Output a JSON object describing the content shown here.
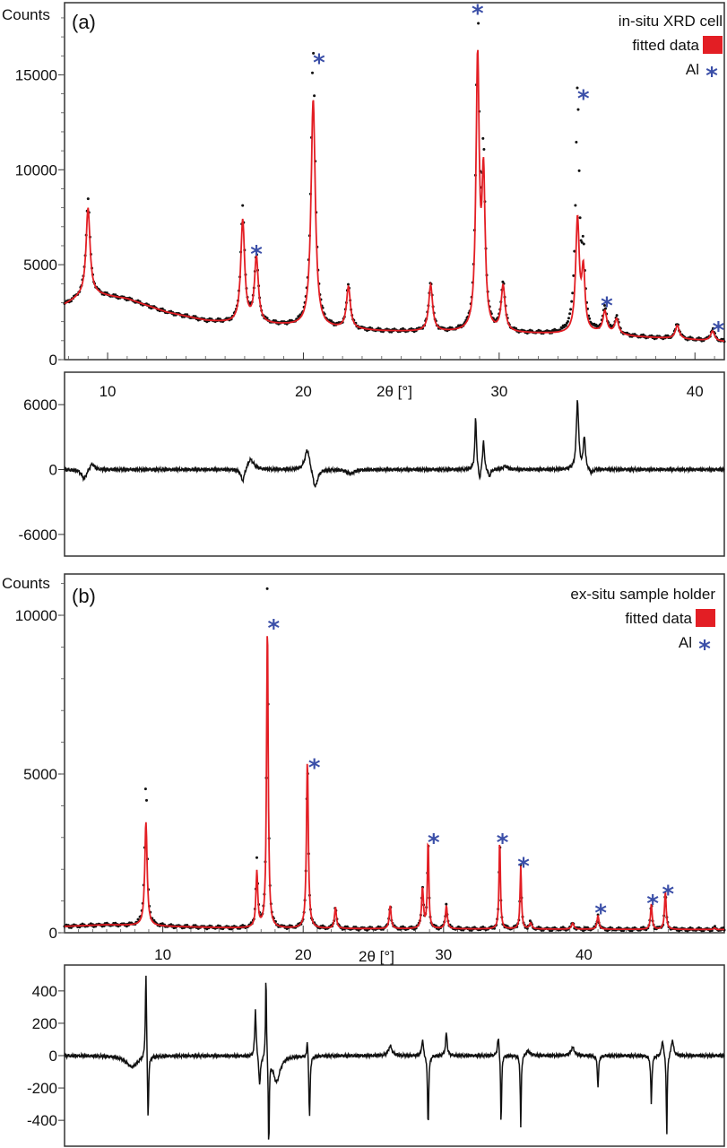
{
  "colors": {
    "fit": "#e31e24",
    "data": "#111111",
    "marker": "#3b4fa8",
    "frame": "#333333"
  },
  "chart_data": [
    {
      "type": "line",
      "panel_label": "(a)",
      "ylabel": "Counts",
      "xlabel": "2θ [°]",
      "xlim": [
        7.8,
        41.5
      ],
      "ylim": [
        0,
        18800
      ],
      "xticks": [
        10,
        20,
        30,
        40
      ],
      "yticks": [
        0,
        5000,
        10000,
        15000
      ],
      "legend": {
        "placement": "top-right",
        "title": "in-situ XRD cell",
        "fit_label": "fitted data",
        "marker_label": "Al",
        "marker_symbol": "*"
      },
      "background": [
        [
          7.8,
          2900
        ],
        [
          9,
          3500
        ],
        [
          11,
          3200
        ],
        [
          13,
          2500
        ],
        [
          15,
          2050
        ],
        [
          16.5,
          1900
        ],
        [
          19,
          1800
        ],
        [
          21,
          1650
        ],
        [
          24,
          1500
        ],
        [
          27,
          1450
        ],
        [
          30,
          1400
        ],
        [
          33,
          1350
        ],
        [
          35,
          1400
        ],
        [
          37,
          1200
        ],
        [
          39,
          1100
        ],
        [
          41.5,
          950
        ]
      ],
      "peaks": [
        {
          "x": 9.0,
          "fit": 8000,
          "obs": 8500,
          "w": 0.12
        },
        {
          "x": 16.9,
          "fit": 7300,
          "obs": 7900,
          "w": 0.12
        },
        {
          "x": 17.6,
          "fit": 5300,
          "obs": 5400,
          "w": 0.12
        },
        {
          "x": 20.5,
          "fit": 13700,
          "obs": 16200,
          "w": 0.13
        },
        {
          "x": 22.3,
          "fit": 3800,
          "obs": 3900,
          "w": 0.12
        },
        {
          "x": 26.5,
          "fit": 3900,
          "obs": 4100,
          "w": 0.12
        },
        {
          "x": 28.9,
          "fit": 15600,
          "obs": 18500,
          "w": 0.1
        },
        {
          "x": 29.2,
          "fit": 9200,
          "obs": 10000,
          "w": 0.1
        },
        {
          "x": 30.2,
          "fit": 3800,
          "obs": 4000,
          "w": 0.12
        },
        {
          "x": 34.0,
          "fit": 7300,
          "obs": 14000,
          "w": 0.11
        },
        {
          "x": 34.3,
          "fit": 4500,
          "obs": 5000,
          "w": 0.1
        },
        {
          "x": 35.4,
          "fit": 2500,
          "obs": 2700,
          "w": 0.12
        },
        {
          "x": 36.0,
          "fit": 2100,
          "obs": 2200,
          "w": 0.12
        },
        {
          "x": 39.1,
          "fit": 1800,
          "obs": 1900,
          "w": 0.12
        },
        {
          "x": 40.9,
          "fit": 1500,
          "obs": 1600,
          "w": 0.12
        }
      ],
      "al_markers": [
        {
          "x": 17.6,
          "y": 5800
        },
        {
          "x": 20.8,
          "y": 15900
        },
        {
          "x": 28.9,
          "y": 18500
        },
        {
          "x": 34.3,
          "y": 14000
        },
        {
          "x": 35.5,
          "y": 3100
        },
        {
          "x": 41.2,
          "y": 1800
        }
      ],
      "difference": {
        "ylim": [
          -8000,
          9000
        ],
        "yticks": [
          -6000,
          0,
          6000
        ],
        "xlim": [
          7.8,
          41.5
        ],
        "features": [
          [
            8.8,
            -900,
            0.15
          ],
          [
            9.2,
            600,
            0.15
          ],
          [
            16.9,
            -1200,
            0.12
          ],
          [
            17.3,
            1000,
            0.2
          ],
          [
            20.2,
            2000,
            0.15
          ],
          [
            20.6,
            -1800,
            0.15
          ],
          [
            22.4,
            -400,
            0.2
          ],
          [
            28.8,
            4800,
            0.05
          ],
          [
            29.0,
            -1200,
            0.06
          ],
          [
            29.2,
            2800,
            0.05
          ],
          [
            29.5,
            -700,
            0.08
          ],
          [
            30.3,
            300,
            0.15
          ],
          [
            34.0,
            6400,
            0.07
          ],
          [
            34.35,
            3000,
            0.06
          ],
          [
            34.7,
            -400,
            0.1
          ]
        ]
      }
    },
    {
      "type": "line",
      "panel_label": "(b)",
      "ylabel": "Counts",
      "xlabel": "2θ [°]",
      "xlim": [
        3.0,
        50.0
      ],
      "ylim": [
        0,
        11300
      ],
      "xticks": [
        10,
        20,
        30,
        40
      ],
      "yticks": [
        0,
        5000,
        10000
      ],
      "legend": {
        "placement": "top-right",
        "title": "ex-situ sample holder",
        "fit_label": "fitted data",
        "marker_label": "Al",
        "marker_symbol": "*"
      },
      "background": [
        [
          3,
          200
        ],
        [
          6,
          250
        ],
        [
          8,
          230
        ],
        [
          10,
          200
        ],
        [
          15,
          150
        ],
        [
          20,
          130
        ],
        [
          30,
          120
        ],
        [
          40,
          110
        ],
        [
          50,
          100
        ]
      ],
      "peaks": [
        {
          "x": 8.8,
          "fit": 3500,
          "obs": 4800,
          "w": 0.1
        },
        {
          "x": 16.7,
          "fit": 1900,
          "obs": 2250,
          "w": 0.08
        },
        {
          "x": 17.45,
          "fit": 9700,
          "obs": 11200,
          "w": 0.07
        },
        {
          "x": 20.3,
          "fit": 5400,
          "obs": 5400,
          "w": 0.08
        },
        {
          "x": 22.3,
          "fit": 800,
          "obs": 850,
          "w": 0.08
        },
        {
          "x": 26.2,
          "fit": 850,
          "obs": 900,
          "w": 0.08
        },
        {
          "x": 28.5,
          "fit": 1400,
          "obs": 1450,
          "w": 0.08
        },
        {
          "x": 28.9,
          "fit": 2900,
          "obs": 2900,
          "w": 0.06
        },
        {
          "x": 30.2,
          "fit": 850,
          "obs": 900,
          "w": 0.08
        },
        {
          "x": 34.0,
          "fit": 2900,
          "obs": 2950,
          "w": 0.06
        },
        {
          "x": 35.5,
          "fit": 2100,
          "obs": 2150,
          "w": 0.06
        },
        {
          "x": 36.2,
          "fit": 300,
          "obs": 320,
          "w": 0.1
        },
        {
          "x": 39.2,
          "fit": 300,
          "obs": 320,
          "w": 0.1
        },
        {
          "x": 41.0,
          "fit": 550,
          "obs": 560,
          "w": 0.08
        },
        {
          "x": 44.8,
          "fit": 900,
          "obs": 920,
          "w": 0.07
        },
        {
          "x": 45.8,
          "fit": 1300,
          "obs": 1330,
          "w": 0.07
        },
        {
          "x": 49.3,
          "fit": 150,
          "obs": 160,
          "w": 0.08
        }
      ],
      "al_markers": [
        {
          "x": 17.9,
          "y": 9750
        },
        {
          "x": 20.8,
          "y": 5350
        },
        {
          "x": 29.3,
          "y": 3000
        },
        {
          "x": 34.2,
          "y": 3000
        },
        {
          "x": 35.7,
          "y": 2250
        },
        {
          "x": 41.2,
          "y": 780
        },
        {
          "x": 44.9,
          "y": 1070
        },
        {
          "x": 46.0,
          "y": 1370
        }
      ],
      "difference": {
        "ylim": [
          -560,
          560
        ],
        "yticks": [
          -400,
          -200,
          0,
          200,
          400
        ],
        "xlim": [
          3.0,
          50.0
        ],
        "features": [
          [
            7.8,
            -70,
            0.5
          ],
          [
            8.8,
            560,
            0.05
          ],
          [
            8.95,
            -420,
            0.05
          ],
          [
            16.6,
            300,
            0.06
          ],
          [
            16.9,
            -180,
            0.07
          ],
          [
            17.35,
            560,
            0.04
          ],
          [
            17.55,
            -560,
            0.04
          ],
          [
            18.1,
            -160,
            0.3
          ],
          [
            20.3,
            130,
            0.05
          ],
          [
            20.45,
            -400,
            0.05
          ],
          [
            26.2,
            60,
            0.15
          ],
          [
            28.5,
            100,
            0.08
          ],
          [
            28.9,
            -440,
            0.05
          ],
          [
            30.2,
            140,
            0.07
          ],
          [
            33.9,
            120,
            0.08
          ],
          [
            34.1,
            -460,
            0.04
          ],
          [
            35.5,
            -460,
            0.04
          ],
          [
            36.0,
            30,
            0.2
          ],
          [
            39.2,
            50,
            0.15
          ],
          [
            41.0,
            -200,
            0.05
          ],
          [
            44.8,
            -300,
            0.05
          ],
          [
            45.6,
            100,
            0.08
          ],
          [
            45.9,
            -500,
            0.04
          ],
          [
            46.3,
            100,
            0.1
          ]
        ]
      }
    }
  ]
}
